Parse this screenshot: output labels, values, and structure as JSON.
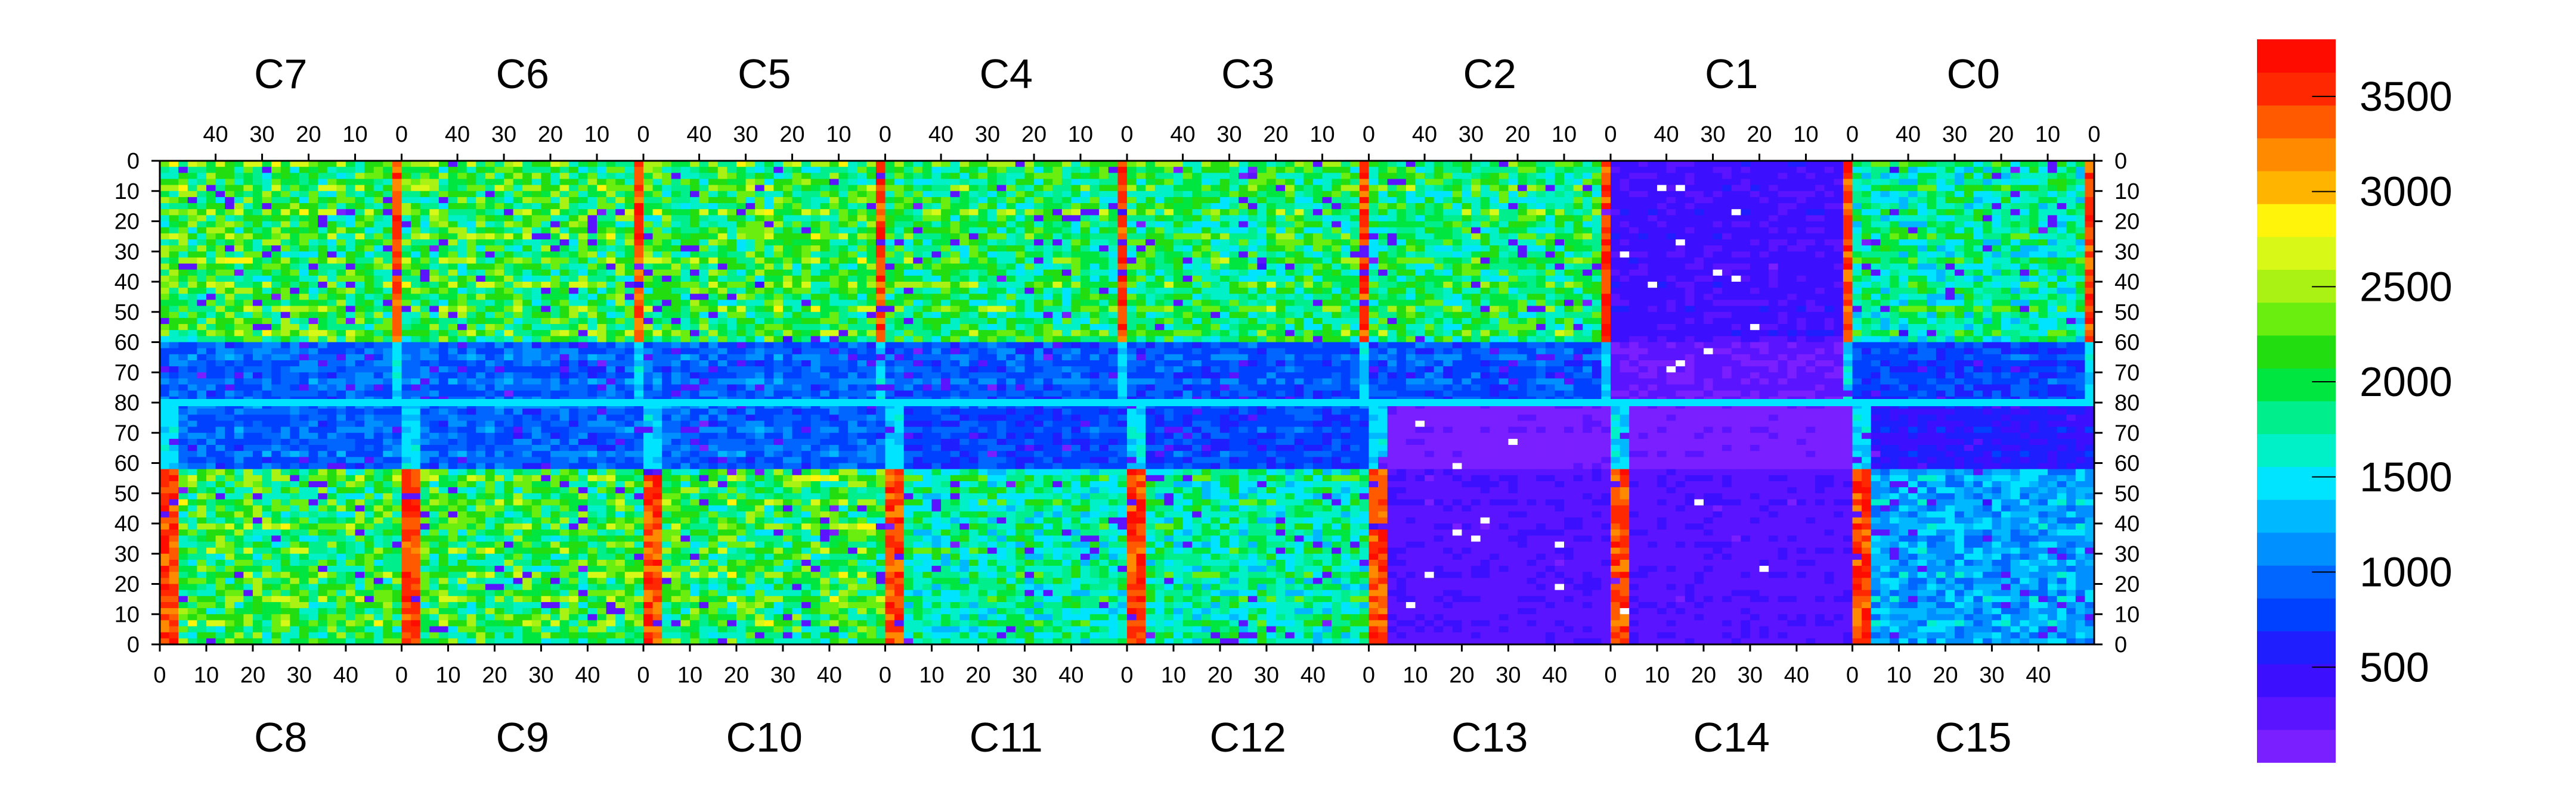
{
  "chart_data": {
    "type": "heatmap",
    "title": "",
    "xlabel": "",
    "ylabel": "",
    "grid": false,
    "top_chips": [
      "C7",
      "C6",
      "C5",
      "C4",
      "C3",
      "C2",
      "C1",
      "C0"
    ],
    "bottom_chips": [
      "C8",
      "C9",
      "C10",
      "C11",
      "C12",
      "C13",
      "C14",
      "C15"
    ],
    "top_ticks": [
      "40",
      "30",
      "20",
      "10",
      "0"
    ],
    "bottom_ticks": [
      "0",
      "10",
      "20",
      "30",
      "40"
    ],
    "y_ticks": [
      "0",
      "10",
      "20",
      "30",
      "40",
      "50",
      "60",
      "70",
      "80",
      "70",
      "60",
      "50",
      "40",
      "30",
      "20",
      "10",
      "0"
    ],
    "cols_per_chip": 52,
    "rows_per_half": 80,
    "zlim": [
      0,
      3800
    ],
    "colorbar_ticks": [
      {
        "label": "500",
        "value": 500
      },
      {
        "label": "1000",
        "value": 1000
      },
      {
        "label": "1500",
        "value": 1500
      },
      {
        "label": "2000",
        "value": 2000
      },
      {
        "label": "2500",
        "value": 2500
      },
      {
        "label": "3000",
        "value": 3000
      },
      {
        "label": "3500",
        "value": 3500
      }
    ],
    "palette": [
      "#7a1fff",
      "#5a14ff",
      "#3c10ff",
      "#1e1eff",
      "#0040ff",
      "#0066ff",
      "#0090ff",
      "#00b8ff",
      "#00e4ff",
      "#00f0c8",
      "#00ee8c",
      "#00e640",
      "#22dd10",
      "#6aee10",
      "#aaf214",
      "#d8f818",
      "#fff40a",
      "#ffb400",
      "#ff8a00",
      "#ff5a00",
      "#ff2800",
      "#ff0c00"
    ],
    "regions": [
      {
        "chip": "C7",
        "level": 2000,
        "note": "dense pixels"
      },
      {
        "chip": "C6",
        "level": 2000
      },
      {
        "chip": "C5",
        "level": 2000
      },
      {
        "chip": "C4",
        "level": 1900
      },
      {
        "chip": "C3",
        "level": 1900
      },
      {
        "chip": "C2",
        "level": 1900
      },
      {
        "chip": "C1",
        "level": 400
      },
      {
        "chip": "C0",
        "level": 1700
      },
      {
        "chip": "C8",
        "level": 2000
      },
      {
        "chip": "C9",
        "level": 2000
      },
      {
        "chip": "C10",
        "level": 2000
      },
      {
        "chip": "C11",
        "level": 1700
      },
      {
        "chip": "C12",
        "level": 1700
      },
      {
        "chip": "C13",
        "level": 300
      },
      {
        "chip": "C14",
        "level": 300
      },
      {
        "chip": "C15",
        "level": 1200
      }
    ],
    "hot_columns": [
      "chip boundary columns: 3200-3700"
    ]
  }
}
